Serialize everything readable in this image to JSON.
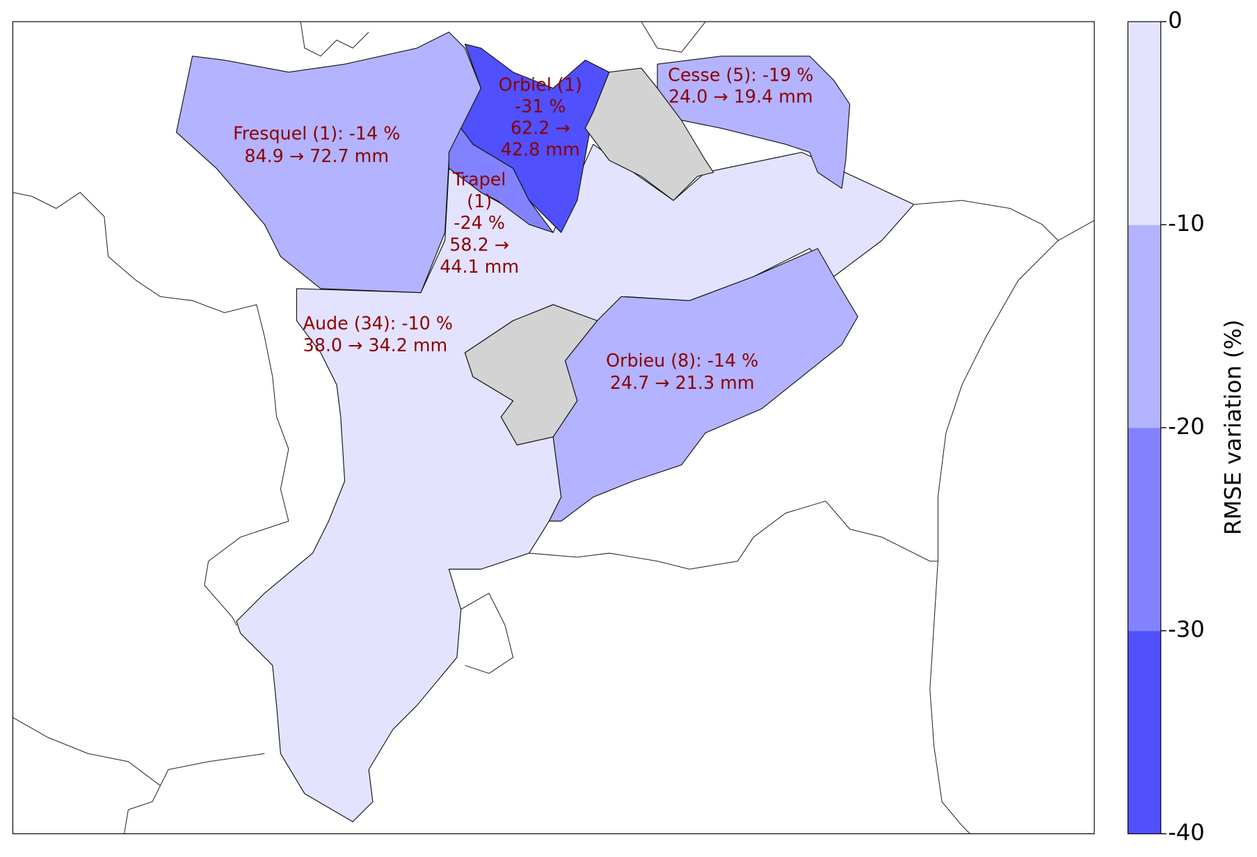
{
  "chart_data": {
    "type": "choropleth",
    "basins": [
      {
        "lines": [
          "Aude (34): -10 %",
          "38.0 → 34.2 mm"
        ],
        "variation": -10
      },
      {
        "lines": [
          "Orbieu (8): -14 %",
          "24.7 → 21.3 mm"
        ],
        "variation": -14
      },
      {
        "lines": [
          "Fresquel (1): -14 %",
          "84.9 → 72.7 mm"
        ],
        "variation": -14
      },
      {
        "lines": [
          "Orbiel (1)",
          "-31 %",
          "62.2 →",
          "42.8 mm"
        ],
        "variation": -31
      },
      {
        "lines": [
          "Trapel",
          "(1)",
          "-24 %",
          "58.2 →",
          "44.1 mm"
        ],
        "variation": -24
      },
      {
        "lines": [
          "Cesse (5): -19 %",
          "24.0 → 19.4 mm"
        ],
        "variation": -19
      }
    ],
    "colorbar": {
      "label": "RMSE variation (%)",
      "lim": [
        -40,
        0
      ],
      "ticks": [
        0,
        -10,
        -20,
        -30,
        -40
      ],
      "colors": [
        "#5050ff",
        "#8282ff",
        "#b3b3ff",
        "#e3e3ff"
      ]
    }
  }
}
